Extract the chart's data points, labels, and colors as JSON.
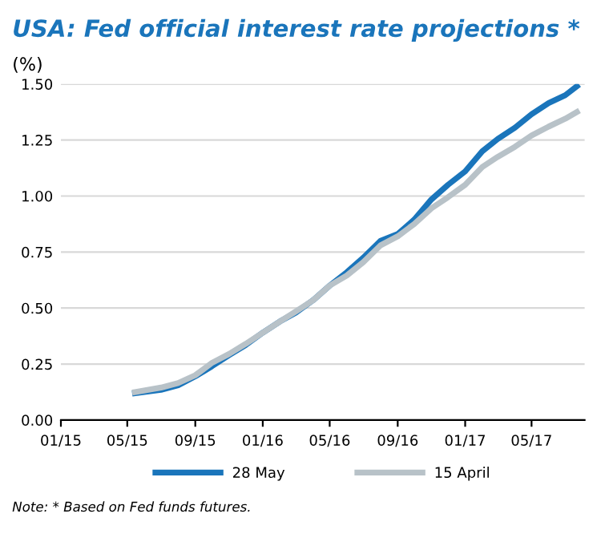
{
  "chart_data": {
    "type": "line",
    "title": "USA: Fed official interest rate projections *",
    "ylabel": "(%)",
    "x": [
      "2015-05-15",
      "2015-07-01",
      "2015-08-01",
      "2015-09-01",
      "2015-10-01",
      "2015-11-01",
      "2015-12-01",
      "2016-01-01",
      "2016-02-01",
      "2016-03-01",
      "2016-04-01",
      "2016-05-01",
      "2016-06-01",
      "2016-07-01",
      "2016-08-01",
      "2016-09-01",
      "2016-10-01",
      "2016-11-01",
      "2016-12-01",
      "2017-01-01",
      "2017-02-01",
      "2017-03-01",
      "2017-04-01",
      "2017-05-01",
      "2017-06-01",
      "2017-07-01",
      "2017-07-22"
    ],
    "series": [
      {
        "name": "28 May",
        "color": "#1a75bb",
        "values": [
          0.12,
          0.135,
          0.155,
          0.195,
          0.24,
          0.29,
          0.335,
          0.39,
          0.44,
          0.48,
          0.535,
          0.6,
          0.66,
          0.725,
          0.8,
          0.83,
          0.895,
          0.985,
          1.05,
          1.11,
          1.2,
          1.255,
          1.305,
          1.365,
          1.415,
          1.45,
          1.49
        ]
      },
      {
        "name": "15 April",
        "color": "#b8c2c8",
        "values": [
          0.125,
          0.145,
          0.165,
          0.2,
          0.255,
          0.295,
          0.34,
          0.39,
          0.44,
          0.485,
          0.535,
          0.6,
          0.645,
          0.705,
          0.78,
          0.82,
          0.875,
          0.945,
          0.995,
          1.05,
          1.13,
          1.175,
          1.22,
          1.27,
          1.31,
          1.345,
          1.375
        ]
      }
    ],
    "xlim": [
      "2015-01-01",
      "2017-08-05"
    ],
    "xticks": [
      {
        "value": "2015-01-01",
        "label": "01/15"
      },
      {
        "value": "2015-05-01",
        "label": "05/15"
      },
      {
        "value": "2015-09-01",
        "label": "09/15"
      },
      {
        "value": "2016-01-01",
        "label": "01/16"
      },
      {
        "value": "2016-05-01",
        "label": "05/16"
      },
      {
        "value": "2016-09-01",
        "label": "09/16"
      },
      {
        "value": "2017-01-01",
        "label": "01/17"
      },
      {
        "value": "2017-05-01",
        "label": "05/17"
      }
    ],
    "ylim": [
      0,
      1.5
    ],
    "yticks": [
      {
        "value": 0,
        "label": "0.00"
      },
      {
        "value": 0.25,
        "label": "0.25"
      },
      {
        "value": 0.5,
        "label": "0.50"
      },
      {
        "value": 0.75,
        "label": "0.75"
      },
      {
        "value": 1,
        "label": "1.00"
      },
      {
        "value": 1.25,
        "label": "1.25"
      },
      {
        "value": 1.5,
        "label": "1.50"
      }
    ],
    "grid": "y",
    "legend": "bottom",
    "line_style": "solid",
    "marker": "none",
    "annotations": [
      "Note: * Based on Fed funds futures."
    ]
  }
}
